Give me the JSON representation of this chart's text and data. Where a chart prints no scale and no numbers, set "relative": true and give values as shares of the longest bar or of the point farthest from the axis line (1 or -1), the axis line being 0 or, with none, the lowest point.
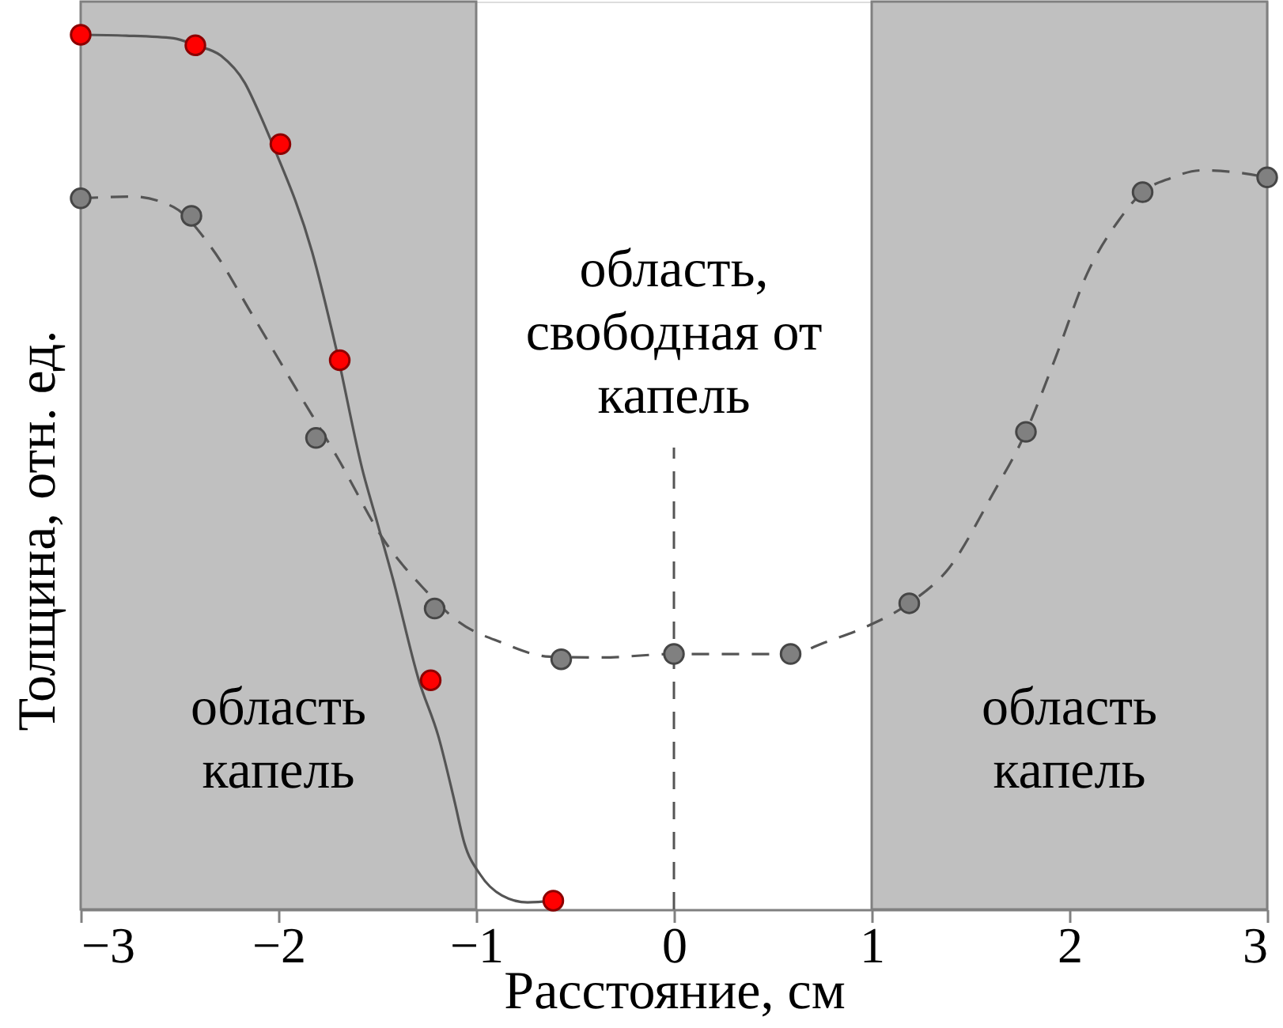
{
  "chart_data": {
    "type": "scatter",
    "relative": true,
    "xlabel": "Расстояние, см",
    "ylabel": "Толщина, отн. ед.",
    "xlim": [
      -3,
      3
    ],
    "xticks": [
      -3,
      -2,
      -1,
      0,
      1,
      2,
      3
    ],
    "series": [
      {
        "type": "line",
        "color": "#555555",
        "line_style": "solid",
        "marker": "none",
        "x": [
          -3,
          -2.77,
          -2.53,
          -2.42,
          -2.29,
          -2.17,
          -2.1,
          -2.03,
          -1.83,
          -1.71,
          -1.57,
          -1.51,
          -1.42,
          -1.29,
          -1.19,
          -1.11,
          -1.06,
          -0.98,
          -0.87,
          -0.74,
          -0.61
        ],
        "values": [
          1.0,
          0.999,
          0.996,
          0.988,
          0.976,
          0.945,
          0.912,
          0.875,
          0.752,
          0.643,
          0.498,
          0.45,
          0.377,
          0.262,
          0.197,
          0.124,
          0.076,
          0.04,
          0.016,
          0.008,
          0.01
        ]
      },
      {
        "type": "line",
        "color": "#555555",
        "line_style": "dashed",
        "marker": "none",
        "x": [
          -3,
          -2.74,
          -2.53,
          -2.34,
          -2.13,
          -1.91,
          -1.7,
          -1.46,
          -1.27,
          -1.09,
          -0.87,
          -0.63,
          -0.37,
          0,
          0.59,
          0.76,
          0.97,
          1.19,
          1.39,
          1.61,
          1.78,
          1.93,
          2.09,
          2.25,
          2.37,
          2.51,
          2.67,
          2.83,
          3
        ],
        "values": [
          0.813,
          0.815,
          0.803,
          0.757,
          0.679,
          0.595,
          0.516,
          0.42,
          0.368,
          0.329,
          0.305,
          0.289,
          0.288,
          0.292,
          0.292,
          0.305,
          0.323,
          0.35,
          0.39,
          0.474,
          0.546,
          0.631,
          0.727,
          0.788,
          0.82,
          0.836,
          0.845,
          0.843,
          0.837
        ]
      },
      {
        "color": "#ff0000",
        "marker": "circle",
        "x": [
          -3,
          -2.42,
          -1.99,
          -1.69,
          -1.23,
          -0.61
        ],
        "values": [
          1.0,
          0.988,
          0.875,
          0.628,
          0.262,
          0.01
        ]
      },
      {
        "color": "#808080",
        "marker": "circle",
        "x": [
          -3,
          -2.44,
          -1.81,
          -1.21,
          -0.57,
          0,
          0.59,
          1.19,
          1.78,
          2.37,
          3
        ],
        "values": [
          0.813,
          0.793,
          0.539,
          0.344,
          0.286,
          0.292,
          0.292,
          0.35,
          0.546,
          0.82,
          0.837
        ]
      }
    ],
    "bands": [
      {
        "axis": "x",
        "from": -3,
        "to": -1,
        "label": "область\nкапель",
        "color": "#c0c0c0"
      },
      {
        "axis": "x",
        "from": 1,
        "to": 3,
        "label": "область\nкапель",
        "color": "#c0c0c0"
      }
    ],
    "ref_lines": [
      {
        "axis": "x",
        "value": 0,
        "label": "область,\nсвободная от\nкапель",
        "line_style": "dashed",
        "color": "#555555"
      }
    ]
  }
}
